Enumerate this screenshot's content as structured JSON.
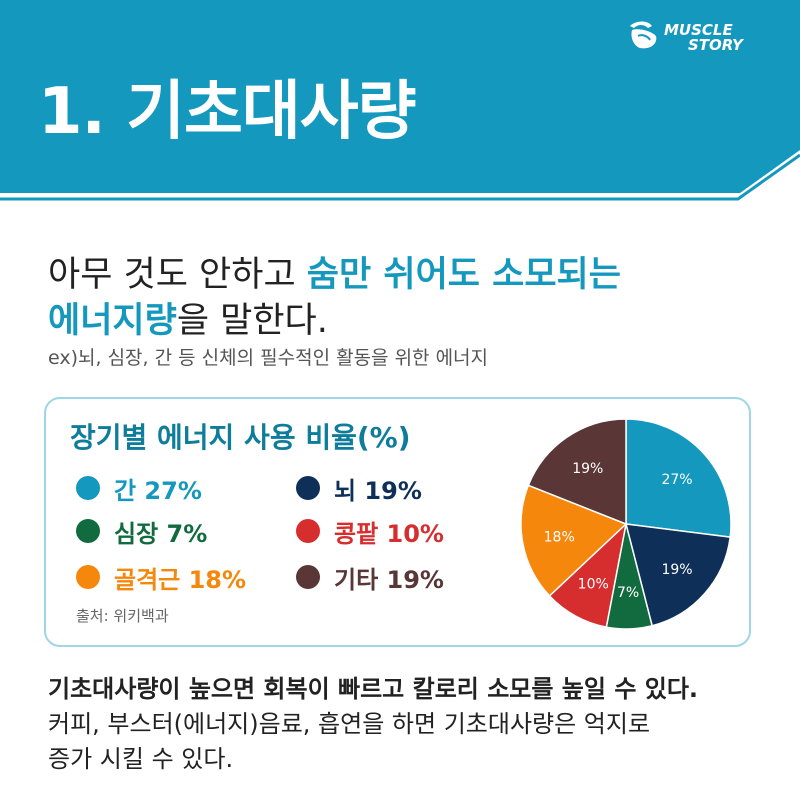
{
  "header": {
    "title": "1. 기초대사량",
    "logo_line1": "MUSCLE",
    "logo_line2": "STORY",
    "banner_color": "#1598be"
  },
  "intro": {
    "line1_plain": "아무 것도 안하고 ",
    "line1_highlight": "숨만 쉬어도 소모되는",
    "line2_highlight": "에너지량",
    "line2_plain": "을 말한다.",
    "example": "ex)뇌, 심장, 간 등 신체의 필수적인 활동을 위한 에너지"
  },
  "card": {
    "source": "출처: 위키백과"
  },
  "chart_data": {
    "type": "pie",
    "title": "장기별 에너지 사용 비율(%)",
    "slices": [
      {
        "label": "간",
        "value": 27,
        "color": "#1598be"
      },
      {
        "label": "뇌",
        "value": 19,
        "color": "#0e2f57"
      },
      {
        "label": "심장",
        "value": 7,
        "color": "#126b3f"
      },
      {
        "label": "콩팥",
        "value": 10,
        "color": "#d62e2e"
      },
      {
        "label": "골격근",
        "value": 18,
        "color": "#f5870c"
      },
      {
        "label": "기타",
        "value": 19,
        "color": "#5a3636"
      }
    ],
    "legend": [
      {
        "text": "간 27%",
        "color": "#1598be",
        "text_color": "#1598be"
      },
      {
        "text": "뇌 19%",
        "color": "#0e2f57",
        "text_color": "#0e2f57"
      },
      {
        "text": "심장 7%",
        "color": "#126b3f",
        "text_color": "#126b3f"
      },
      {
        "text": "콩팥 10%",
        "color": "#d62e2e",
        "text_color": "#d62e2e"
      },
      {
        "text": "골격근 18%",
        "color": "#f5870c",
        "text_color": "#f5870c"
      },
      {
        "text": "기타 19%",
        "color": "#5a3636",
        "text_color": "#5a3636"
      }
    ],
    "slice_labels": [
      "27%",
      "19%",
      "7%",
      "10%",
      "18%",
      "19%"
    ]
  },
  "bottom": {
    "line1": "기초대사량이 높으면 회복이 빠르고 칼로리 소모를 높일 수 있다.",
    "line2": "커피, 부스터(에너지)음료, 흡연을 하면 기초대사량은 억지로",
    "line3": "증가 시킬 수 있다."
  }
}
